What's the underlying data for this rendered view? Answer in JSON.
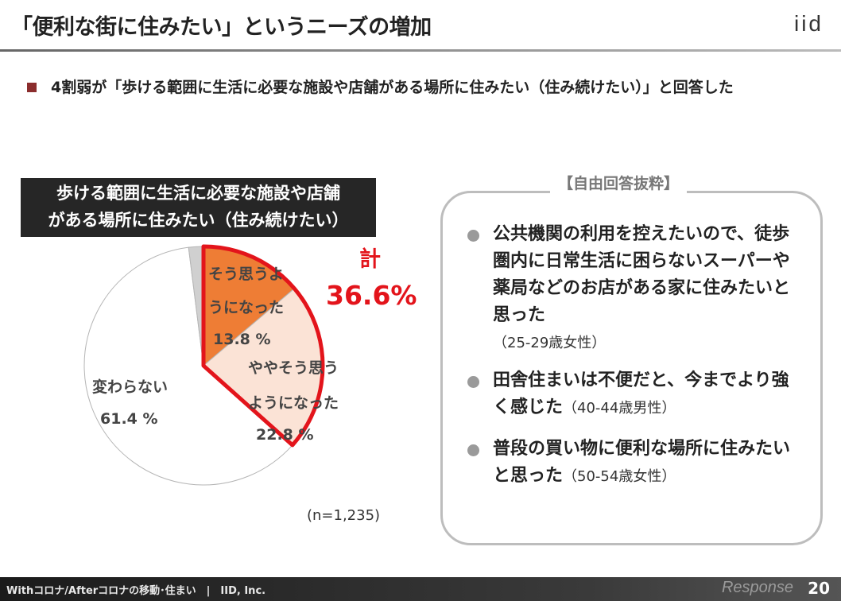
{
  "slide": {
    "title": "「便利な街に住みたい」というニーズの増加",
    "logo": "iid",
    "bullet": "4割弱が「歩ける範囲に生活に必要な施設や店舗がある場所に住みたい（住み続けたい）」と回答した",
    "footer": "Withコロナ/Afterコロナの移動･住まい　|　IID, Inc.",
    "page_number": "20",
    "watermark": "Response"
  },
  "chart_data": {
    "type": "pie",
    "title_line1": "歩ける範囲に生活に必要な施設や店舗",
    "title_line2": "がある場所に住みたい（住み続けたい）",
    "total_label": "計",
    "total_value": "36.6%",
    "n_label": "(n=1,235)",
    "slices": [
      {
        "label_line1": "そう思うよ",
        "label_line2": "うになった",
        "value": 13.8,
        "value_text": "13.8 %",
        "color": "#ee7d35"
      },
      {
        "label_line1": "ややそう思う",
        "label_line2": "ようになった",
        "value": 22.8,
        "value_text": "22.8 %",
        "color": "#fbe3d6"
      },
      {
        "label_line1": "変わらない",
        "label_line2": "",
        "value": 61.4,
        "value_text": "61.4 %",
        "color": "#ffffff"
      },
      {
        "label_line1": "",
        "label_line2": "",
        "value": 2.0,
        "value_text": "",
        "color": "#d0d0d0"
      }
    ],
    "highlight_color": "#e3141b"
  },
  "comments": {
    "heading": "【自由回答抜粋】",
    "items": [
      {
        "text": "公共機関の利用を控えたいので、徒歩圏内に日常生活に困らないスーパーや薬局などのお店がある家に住みたいと思った",
        "who": "（25-29歳女性）"
      },
      {
        "text": "田舎住まいは不便だと、今までより強く感じた",
        "who": "（40-44歳男性）"
      },
      {
        "text": "普段の買い物に便利な場所に住みたいと思った",
        "who": "（50-54歳女性）"
      }
    ]
  }
}
